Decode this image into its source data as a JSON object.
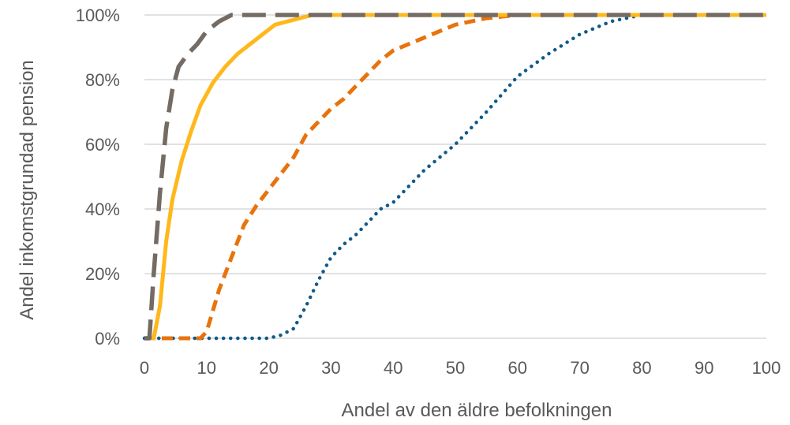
{
  "chart_data": {
    "type": "line",
    "xlabel": "Andel av den äldre befolkningen",
    "ylabel": "Andel inkomstgrundad pension",
    "xlim": [
      0,
      100
    ],
    "ylim": [
      0,
      100
    ],
    "x_ticks": [
      "0",
      "10",
      "20",
      "30",
      "40",
      "50",
      "60",
      "70",
      "80",
      "90",
      "100"
    ],
    "y_ticks": [
      "0%",
      "20%",
      "40%",
      "60%",
      "80%",
      "100%"
    ],
    "grid": true,
    "legend": "none",
    "series": [
      {
        "color": "#0f5a8a",
        "style": "dotted",
        "x": [
          0,
          5,
          10,
          15,
          20,
          22,
          24,
          26,
          28,
          30,
          32,
          34,
          36,
          38,
          40,
          45,
          50,
          55,
          60,
          65,
          70,
          75,
          80,
          85,
          90,
          95,
          100
        ],
        "y": [
          0,
          0,
          0,
          0,
          0,
          1,
          3,
          10,
          18,
          25,
          29,
          32,
          36,
          40,
          42,
          52,
          60,
          70,
          81,
          88,
          94,
          98,
          100,
          100,
          100,
          100,
          100
        ]
      },
      {
        "color": "#e8730c",
        "style": "dashed",
        "x": [
          0,
          5,
          9,
          10,
          12,
          14,
          16,
          18,
          20,
          22,
          24,
          26,
          28,
          30,
          32,
          34,
          36,
          38,
          40,
          45,
          50,
          55,
          60,
          65,
          70,
          75,
          80,
          85,
          90,
          95,
          100
        ],
        "y": [
          0,
          0,
          0,
          2,
          15,
          25,
          35,
          41,
          46,
          51,
          56,
          63,
          67,
          71,
          74,
          78,
          82,
          86,
          89,
          93,
          97,
          99,
          100,
          100,
          100,
          100,
          100,
          100,
          100,
          100,
          100
        ]
      },
      {
        "color": "#ffb81c",
        "style": "solid",
        "x": [
          0,
          1.5,
          2.5,
          3.5,
          4.5,
          6,
          7.5,
          9,
          11,
          13,
          15,
          17,
          19,
          21,
          23,
          25,
          27,
          30,
          40,
          50,
          60,
          70,
          80,
          90,
          100
        ],
        "y": [
          0,
          0,
          10,
          30,
          43,
          55,
          64,
          72,
          79,
          84,
          88,
          91,
          94,
          97,
          98,
          99,
          100,
          100,
          100,
          100,
          100,
          100,
          100,
          100,
          100
        ]
      },
      {
        "color": "#736b64",
        "style": "longdash",
        "x": [
          0,
          0.8,
          1.5,
          2.5,
          3.5,
          4.5,
          5.5,
          7,
          8.5,
          10,
          12,
          14,
          16,
          20,
          30,
          40,
          50,
          60,
          70,
          80,
          90,
          100
        ],
        "y": [
          0,
          0,
          20,
          45,
          65,
          77,
          84,
          88,
          91,
          95,
          98,
          100,
          100,
          100,
          100,
          100,
          100,
          100,
          100,
          100,
          100,
          100
        ]
      }
    ]
  }
}
